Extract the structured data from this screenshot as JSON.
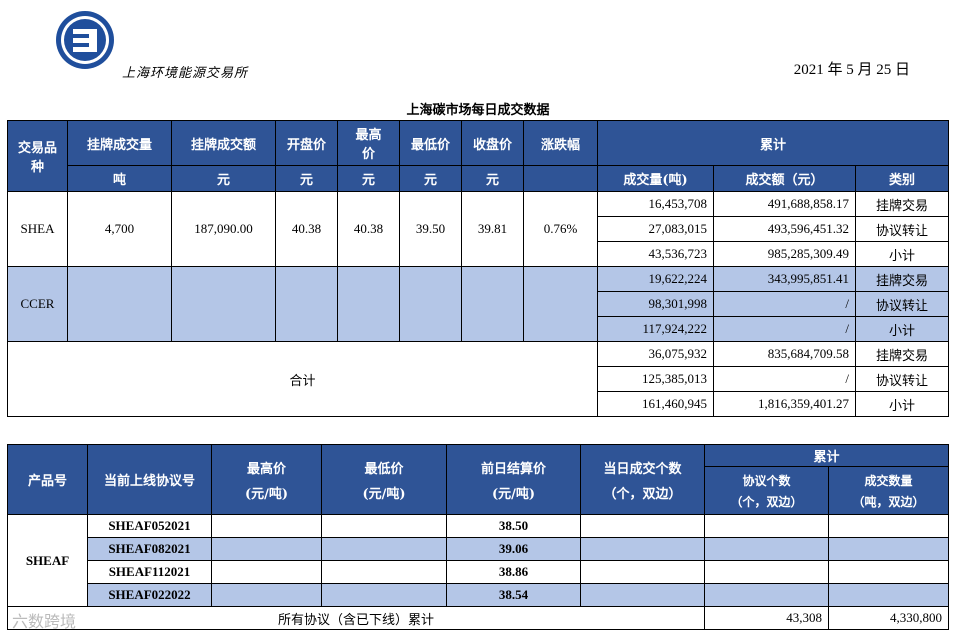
{
  "header": {
    "logo_text": "上海环境能源交易所",
    "date": "2021 年 5 月 25 日",
    "title": "上海碳市场每日成交数据"
  },
  "table1": {
    "headers": {
      "product": "交易品种",
      "listed_volume": "挂牌成交量",
      "listed_amount": "挂牌成交额",
      "open": "开盘价",
      "high": "最高价",
      "low": "最低价",
      "close": "收盘价",
      "change": "涨跌幅",
      "cumulative": "累计",
      "unit_ton": "吨",
      "unit_yuan": "元",
      "cum_volume": "成交量(吨)",
      "cum_amount": "成交额（元）",
      "cum_type": "类别"
    },
    "shea": {
      "name": "SHEA",
      "listed_volume": "4,700",
      "listed_amount": "187,090.00",
      "open": "40.38",
      "high": "40.38",
      "low": "39.50",
      "close": "39.81",
      "change": "0.76%",
      "rows": [
        {
          "volume": "16,453,708",
          "amount": "491,688,858.17",
          "type": "挂牌交易"
        },
        {
          "volume": "27,083,015",
          "amount": "493,596,451.32",
          "type": "协议转让"
        },
        {
          "volume": "43,536,723",
          "amount": "985,285,309.49",
          "type": "小计"
        }
      ]
    },
    "ccer": {
      "name": "CCER",
      "rows": [
        {
          "volume": "19,622,224",
          "amount": "343,995,851.41",
          "type": "挂牌交易"
        },
        {
          "volume": "98,301,998",
          "amount": "/",
          "type": "协议转让"
        },
        {
          "volume": "117,924,222",
          "amount": "/",
          "type": "小计"
        }
      ]
    },
    "total": {
      "name": "合计",
      "rows": [
        {
          "volume": "36,075,932",
          "amount": "835,684,709.58",
          "type": "挂牌交易"
        },
        {
          "volume": "125,385,013",
          "amount": "/",
          "type": "协议转让"
        },
        {
          "volume": "161,460,945",
          "amount": "1,816,359,401.27",
          "type": "小计"
        }
      ]
    }
  },
  "table2": {
    "headers": {
      "product": "产品号",
      "contract": "当前上线协议号",
      "high": "最高价",
      "high_unit": "(元/吨)",
      "low": "最低价",
      "low_unit": "(元/吨)",
      "settle": "前日结算价",
      "settle_unit": "(元/吨)",
      "daily_count": "当日成交个数",
      "daily_count_unit": "（个，双边）",
      "cumulative": "累计",
      "cum_count": "协议个数",
      "cum_count_unit": "（个，双边）",
      "cum_qty": "成交数量",
      "cum_qty_unit": "（吨，双边）"
    },
    "product": "SHEAF",
    "rows": [
      {
        "contract": "SHEAF052021",
        "settle": "38.50"
      },
      {
        "contract": "SHEAF082021",
        "settle": "39.06"
      },
      {
        "contract": "SHEAF112021",
        "settle": "38.86"
      },
      {
        "contract": "SHEAF022022",
        "settle": "38.54"
      }
    ],
    "footer": {
      "label": "所有协议（含已下线）累计",
      "cum_count": "43,308",
      "cum_qty": "4,330,800"
    }
  },
  "watermark": "六数跨境"
}
